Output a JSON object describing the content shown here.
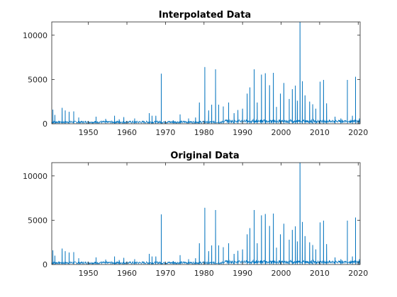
{
  "chart_data": [
    {
      "type": "line",
      "title": "Interpolated Data",
      "xlabel": "",
      "ylabel": "",
      "xlim": [
        1940.5,
        2020.5
      ],
      "ylim": [
        0,
        11500
      ],
      "xticks": [
        1950,
        1960,
        1970,
        1980,
        1990,
        2000,
        2010,
        2020
      ],
      "yticks": [
        0,
        5000,
        10000
      ],
      "grid": false,
      "series_color": "#0072BD",
      "peaks": [
        {
          "x": 1940.8,
          "y": 1600
        },
        {
          "x": 1941.3,
          "y": 1000
        },
        {
          "x": 1943.2,
          "y": 1800
        },
        {
          "x": 1944.0,
          "y": 1500
        },
        {
          "x": 1945.0,
          "y": 1350
        },
        {
          "x": 1946.2,
          "y": 1400
        },
        {
          "x": 1947.5,
          "y": 700
        },
        {
          "x": 1952.0,
          "y": 800
        },
        {
          "x": 1954.5,
          "y": 550
        },
        {
          "x": 1956.8,
          "y": 900
        },
        {
          "x": 1958.0,
          "y": 500
        },
        {
          "x": 1959.2,
          "y": 750
        },
        {
          "x": 1962.0,
          "y": 600
        },
        {
          "x": 1965.8,
          "y": 1200
        },
        {
          "x": 1966.5,
          "y": 900
        },
        {
          "x": 1967.5,
          "y": 900
        },
        {
          "x": 1968.9,
          "y": 5650
        },
        {
          "x": 1972.0,
          "y": 400
        },
        {
          "x": 1973.8,
          "y": 1050
        },
        {
          "x": 1976.0,
          "y": 600
        },
        {
          "x": 1977.8,
          "y": 700
        },
        {
          "x": 1978.8,
          "y": 2400
        },
        {
          "x": 1980.2,
          "y": 6400
        },
        {
          "x": 1981.2,
          "y": 1500
        },
        {
          "x": 1982.0,
          "y": 2150
        },
        {
          "x": 1983.0,
          "y": 6150
        },
        {
          "x": 1983.8,
          "y": 2150
        },
        {
          "x": 1985.0,
          "y": 1950
        },
        {
          "x": 1986.4,
          "y": 2400
        },
        {
          "x": 1987.8,
          "y": 1200
        },
        {
          "x": 1988.8,
          "y": 1550
        },
        {
          "x": 1990.0,
          "y": 1700
        },
        {
          "x": 1991.2,
          "y": 3400
        },
        {
          "x": 1991.9,
          "y": 4100
        },
        {
          "x": 1993.0,
          "y": 6150
        },
        {
          "x": 1993.8,
          "y": 2400
        },
        {
          "x": 1994.9,
          "y": 5550
        },
        {
          "x": 1995.9,
          "y": 5700
        },
        {
          "x": 1997.0,
          "y": 4350
        },
        {
          "x": 1998.0,
          "y": 5750
        },
        {
          "x": 1998.8,
          "y": 1900
        },
        {
          "x": 1999.8,
          "y": 3400
        },
        {
          "x": 2000.7,
          "y": 4600
        },
        {
          "x": 2002.1,
          "y": 2800
        },
        {
          "x": 2002.9,
          "y": 3900
        },
        {
          "x": 2003.7,
          "y": 4300
        },
        {
          "x": 2004.2,
          "y": 2600
        },
        {
          "x": 2004.9,
          "y": 11500
        },
        {
          "x": 2005.5,
          "y": 4800
        },
        {
          "x": 2006.2,
          "y": 3200
        },
        {
          "x": 2007.4,
          "y": 2500
        },
        {
          "x": 2008.2,
          "y": 2200
        },
        {
          "x": 2009.0,
          "y": 1700
        },
        {
          "x": 2010.1,
          "y": 4750
        },
        {
          "x": 2011.0,
          "y": 4950
        },
        {
          "x": 2011.8,
          "y": 2300
        },
        {
          "x": 2014.0,
          "y": 800
        },
        {
          "x": 2015.5,
          "y": 600
        },
        {
          "x": 2017.2,
          "y": 4950
        },
        {
          "x": 2018.5,
          "y": 900
        },
        {
          "x": 2019.3,
          "y": 5300
        },
        {
          "x": 2020.3,
          "y": 600
        }
      ]
    },
    {
      "type": "line",
      "title": "Original Data",
      "xlabel": "",
      "ylabel": "",
      "xlim": [
        1940.5,
        2020.5
      ],
      "ylim": [
        0,
        11500
      ],
      "xticks": [
        1950,
        1960,
        1970,
        1980,
        1990,
        2000,
        2010,
        2020
      ],
      "yticks": [
        0,
        5000,
        10000
      ],
      "grid": false,
      "series_color": "#0072BD",
      "peaks": [
        {
          "x": 1940.8,
          "y": 1600
        },
        {
          "x": 1941.3,
          "y": 1000
        },
        {
          "x": 1943.2,
          "y": 1800
        },
        {
          "x": 1944.0,
          "y": 1500
        },
        {
          "x": 1945.0,
          "y": 1350
        },
        {
          "x": 1946.2,
          "y": 1400
        },
        {
          "x": 1947.5,
          "y": 700
        },
        {
          "x": 1952.0,
          "y": 800
        },
        {
          "x": 1954.5,
          "y": 550
        },
        {
          "x": 1956.8,
          "y": 900
        },
        {
          "x": 1958.0,
          "y": 500
        },
        {
          "x": 1959.2,
          "y": 750
        },
        {
          "x": 1962.0,
          "y": 600
        },
        {
          "x": 1965.8,
          "y": 1200
        },
        {
          "x": 1966.5,
          "y": 900
        },
        {
          "x": 1967.5,
          "y": 900
        },
        {
          "x": 1968.9,
          "y": 5650
        },
        {
          "x": 1972.0,
          "y": 400
        },
        {
          "x": 1973.8,
          "y": 1050
        },
        {
          "x": 1976.0,
          "y": 600
        },
        {
          "x": 1977.8,
          "y": 700
        },
        {
          "x": 1978.8,
          "y": 2400
        },
        {
          "x": 1980.2,
          "y": 6400
        },
        {
          "x": 1981.2,
          "y": 1500
        },
        {
          "x": 1982.0,
          "y": 2150
        },
        {
          "x": 1983.0,
          "y": 6150
        },
        {
          "x": 1983.8,
          "y": 2150
        },
        {
          "x": 1985.0,
          "y": 1950
        },
        {
          "x": 1986.4,
          "y": 2400
        },
        {
          "x": 1987.8,
          "y": 1200
        },
        {
          "x": 1988.8,
          "y": 1550
        },
        {
          "x": 1990.0,
          "y": 1700
        },
        {
          "x": 1991.2,
          "y": 3400
        },
        {
          "x": 1991.9,
          "y": 4100
        },
        {
          "x": 1993.0,
          "y": 6150
        },
        {
          "x": 1993.8,
          "y": 2400
        },
        {
          "x": 1994.9,
          "y": 5550
        },
        {
          "x": 1995.9,
          "y": 5700
        },
        {
          "x": 1997.0,
          "y": 4350
        },
        {
          "x": 1998.0,
          "y": 5750
        },
        {
          "x": 1998.8,
          "y": 1900
        },
        {
          "x": 1999.8,
          "y": 3400
        },
        {
          "x": 2000.7,
          "y": 4600
        },
        {
          "x": 2002.1,
          "y": 2800
        },
        {
          "x": 2002.9,
          "y": 3900
        },
        {
          "x": 2003.7,
          "y": 4300
        },
        {
          "x": 2004.2,
          "y": 2600
        },
        {
          "x": 2004.9,
          "y": 11500
        },
        {
          "x": 2005.5,
          "y": 4800
        },
        {
          "x": 2006.2,
          "y": 3200
        },
        {
          "x": 2007.4,
          "y": 2500
        },
        {
          "x": 2008.2,
          "y": 2200
        },
        {
          "x": 2009.0,
          "y": 1700
        },
        {
          "x": 2010.1,
          "y": 4750
        },
        {
          "x": 2011.0,
          "y": 4950
        },
        {
          "x": 2011.8,
          "y": 2300
        },
        {
          "x": 2014.0,
          "y": 800
        },
        {
          "x": 2015.5,
          "y": 600
        },
        {
          "x": 2017.2,
          "y": 4950
        },
        {
          "x": 2018.5,
          "y": 900
        },
        {
          "x": 2019.3,
          "y": 5300
        },
        {
          "x": 2020.3,
          "y": 600
        }
      ]
    }
  ]
}
